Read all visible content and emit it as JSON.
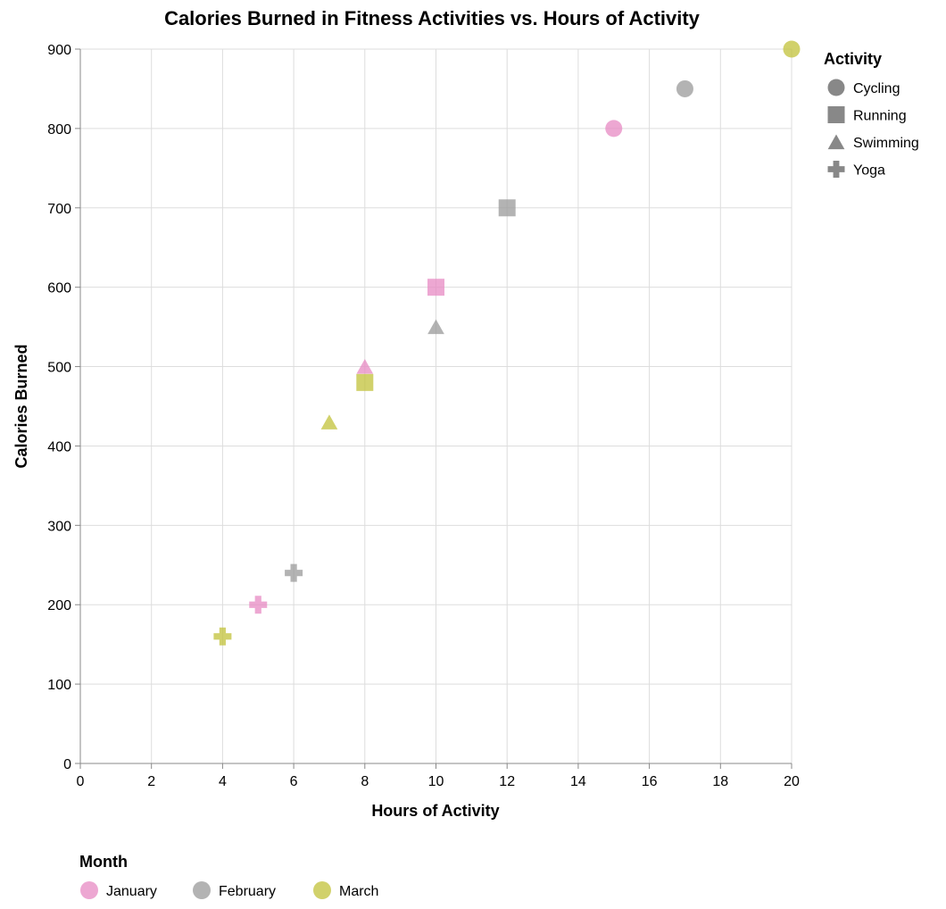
{
  "chart_data": {
    "type": "scatter",
    "title": "Calories Burned in Fitness Activities vs. Hours of Activity",
    "xlabel": "Hours of Activity",
    "ylabel": "Calories Burned",
    "xlim": [
      0,
      20
    ],
    "ylim": [
      0,
      900
    ],
    "xticks": [
      0,
      2,
      4,
      6,
      8,
      10,
      12,
      14,
      16,
      18,
      20
    ],
    "yticks": [
      0,
      100,
      200,
      300,
      400,
      500,
      600,
      700,
      800,
      900
    ],
    "grid": true,
    "points": [
      {
        "month": "January",
        "activity": "Running",
        "x": 10,
        "y": 600
      },
      {
        "month": "January",
        "activity": "Cycling",
        "x": 15,
        "y": 800
      },
      {
        "month": "January",
        "activity": "Swimming",
        "x": 8,
        "y": 500
      },
      {
        "month": "January",
        "activity": "Yoga",
        "x": 5,
        "y": 200
      },
      {
        "month": "February",
        "activity": "Running",
        "x": 12,
        "y": 700
      },
      {
        "month": "February",
        "activity": "Cycling",
        "x": 17,
        "y": 850
      },
      {
        "month": "February",
        "activity": "Swimming",
        "x": 10,
        "y": 550
      },
      {
        "month": "February",
        "activity": "Yoga",
        "x": 6,
        "y": 240
      },
      {
        "month": "March",
        "activity": "Running",
        "x": 8,
        "y": 480
      },
      {
        "month": "March",
        "activity": "Cycling",
        "x": 20,
        "y": 900
      },
      {
        "month": "March",
        "activity": "Swimming",
        "x": 7,
        "y": 430
      },
      {
        "month": "March",
        "activity": "Yoga",
        "x": 4,
        "y": 160
      }
    ],
    "legend_shape": {
      "title": "Activity",
      "placement": "right",
      "items": [
        {
          "label": "Cycling",
          "shape": "circle"
        },
        {
          "label": "Running",
          "shape": "square"
        },
        {
          "label": "Swimming",
          "shape": "triangle"
        },
        {
          "label": "Yoga",
          "shape": "cross"
        }
      ]
    },
    "legend_color": {
      "title": "Month",
      "placement": "bottom",
      "items": [
        {
          "label": "January",
          "color": "#e78ac3"
        },
        {
          "label": "February",
          "color": "#999999"
        },
        {
          "label": "March",
          "color": "#c2c23a"
        }
      ]
    },
    "legend_shape_swatch_color": "#888888"
  }
}
